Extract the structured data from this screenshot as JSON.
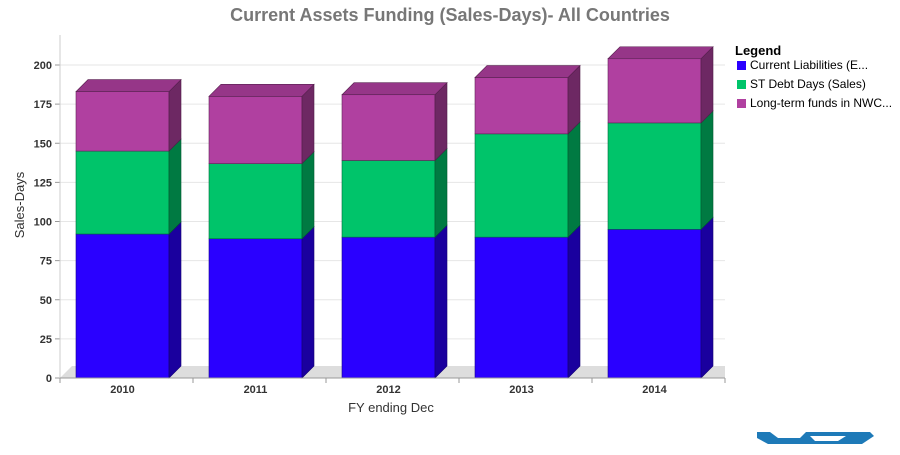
{
  "chart_data": {
    "type": "bar",
    "stacked": true,
    "three_d": true,
    "title": "Current Assets Funding (Sales-Days)- All Countries",
    "xlabel": "FY ending Dec",
    "ylabel": "Sales-Days",
    "ylim": [
      0,
      200
    ],
    "yticks": [
      0,
      25,
      50,
      75,
      100,
      125,
      150,
      175,
      200
    ],
    "categories": [
      "2010",
      "2011",
      "2012",
      "2013",
      "2014"
    ],
    "series": [
      {
        "name": "Current Liabilities (E...",
        "color": "#2a00ff",
        "values": [
          92,
          89,
          90,
          90,
          95
        ]
      },
      {
        "name": "ST Debt Days (Sales)",
        "color": "#00c46a",
        "values": [
          53,
          48,
          49,
          66,
          68
        ]
      },
      {
        "name": "Long-term funds in NWC...",
        "color": "#b040a0",
        "values": [
          38,
          43,
          42,
          36,
          41
        ]
      }
    ],
    "legend": {
      "title": "Legend",
      "position": "right"
    },
    "grid": true
  },
  "logo": {
    "name": "logo-icon",
    "color": "#1e7ab8"
  }
}
